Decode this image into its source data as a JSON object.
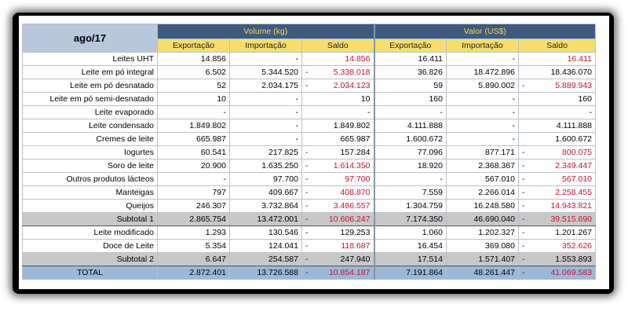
{
  "title": "ago/17",
  "groups": [
    "Volume (kg)",
    "Valor (US$)"
  ],
  "columns": [
    "Exportação",
    "Importação",
    "Saldo",
    "Exportação",
    "Importação",
    "Saldo"
  ],
  "rows": [
    {
      "label": "Leites UHT",
      "kind": "row",
      "v": [
        [
          "14.856",
          ""
        ],
        [
          "-",
          ""
        ],
        [
          "14.856",
          "r"
        ],
        [
          "16.411",
          ""
        ],
        [
          "-",
          ""
        ],
        [
          "16.411",
          "r"
        ]
      ]
    },
    {
      "label": "Leite em pó integral",
      "kind": "row",
      "v": [
        [
          "6.502",
          ""
        ],
        [
          "5.344.520",
          ""
        ],
        [
          "5.338.018",
          "rn"
        ],
        [
          "36.826",
          ""
        ],
        [
          "18.472.896",
          ""
        ],
        [
          "18.436.070",
          ""
        ]
      ]
    },
    {
      "label": "Leite em pó desnatado",
      "kind": "row",
      "v": [
        [
          "52",
          ""
        ],
        [
          "2.034.175",
          ""
        ],
        [
          "2.034.123",
          "rn"
        ],
        [
          "59",
          ""
        ],
        [
          "5.890.002",
          ""
        ],
        [
          "5.889.943",
          "rn"
        ]
      ]
    },
    {
      "label": "Leite em pó semi-desnatado",
      "kind": "row",
      "v": [
        [
          "10",
          ""
        ],
        [
          "-",
          ""
        ],
        [
          "10",
          ""
        ],
        [
          "160",
          ""
        ],
        [
          "-",
          ""
        ],
        [
          "160",
          ""
        ]
      ]
    },
    {
      "label": "Leite evaporado",
      "kind": "row",
      "v": [
        [
          "-",
          ""
        ],
        [
          "-",
          ""
        ],
        [
          "-",
          ""
        ],
        [
          "-",
          ""
        ],
        [
          "-",
          ""
        ],
        [
          "-",
          ""
        ]
      ]
    },
    {
      "label": "Leite condensado",
      "kind": "row",
      "v": [
        [
          "1.849.802",
          ""
        ],
        [
          "-",
          ""
        ],
        [
          "1.849.802",
          ""
        ],
        [
          "4.111.888",
          ""
        ],
        [
          "-",
          ""
        ],
        [
          "4.111.888",
          ""
        ]
      ]
    },
    {
      "label": "Cremes de leite",
      "kind": "row",
      "v": [
        [
          "665.987",
          ""
        ],
        [
          "-",
          ""
        ],
        [
          "665.987",
          ""
        ],
        [
          "1.600.672",
          ""
        ],
        [
          "-",
          ""
        ],
        [
          "1.600.672",
          ""
        ]
      ]
    },
    {
      "label": "Iogurtes",
      "kind": "row",
      "v": [
        [
          "60.541",
          ""
        ],
        [
          "217.825",
          ""
        ],
        [
          "157.284",
          "n"
        ],
        [
          "77.096",
          ""
        ],
        [
          "877.171",
          ""
        ],
        [
          "800.075",
          "rn"
        ]
      ]
    },
    {
      "label": "Soro de leite",
      "kind": "row",
      "v": [
        [
          "20.900",
          ""
        ],
        [
          "1.635.250",
          ""
        ],
        [
          "1.614.350",
          "rn"
        ],
        [
          "18.920",
          ""
        ],
        [
          "2.368.367",
          ""
        ],
        [
          "2.349.447",
          "rn"
        ]
      ]
    },
    {
      "label": "Outros produtos lácteos",
      "kind": "row",
      "v": [
        [
          "-",
          ""
        ],
        [
          "97.700",
          ""
        ],
        [
          "97.700",
          "rn"
        ],
        [
          "-",
          ""
        ],
        [
          "567.010",
          ""
        ],
        [
          "567.010",
          "rn"
        ]
      ]
    },
    {
      "label": "Manteigas",
      "kind": "row",
      "v": [
        [
          "797",
          ""
        ],
        [
          "409.667",
          ""
        ],
        [
          "408.870",
          "rn"
        ],
        [
          "7.559",
          ""
        ],
        [
          "2.266.014",
          ""
        ],
        [
          "2.258.455",
          "rn"
        ]
      ]
    },
    {
      "label": "Queijos",
      "kind": "row",
      "v": [
        [
          "246.307",
          ""
        ],
        [
          "3.732.864",
          ""
        ],
        [
          "3.486.557",
          "rn"
        ],
        [
          "1.304.759",
          ""
        ],
        [
          "16.248.580",
          ""
        ],
        [
          "14.943.821",
          "rn"
        ]
      ]
    },
    {
      "label": "Subtotal 1",
      "kind": "sub",
      "v": [
        [
          "2.865.754",
          ""
        ],
        [
          "13.472.001",
          ""
        ],
        [
          "10.606.247",
          "rn"
        ],
        [
          "7.174.350",
          ""
        ],
        [
          "46.690.040",
          ""
        ],
        [
          "39.515.690",
          "rn"
        ]
      ]
    },
    {
      "label": "Leite modificado",
      "kind": "row",
      "v": [
        [
          "1.293",
          ""
        ],
        [
          "130.546",
          ""
        ],
        [
          "129.253",
          "n"
        ],
        [
          "1.060",
          ""
        ],
        [
          "1.202.327",
          ""
        ],
        [
          "1.201.267",
          "n"
        ]
      ]
    },
    {
      "label": "Doce de Leite",
      "kind": "row",
      "v": [
        [
          "5.354",
          ""
        ],
        [
          "124.041",
          ""
        ],
        [
          "118.687",
          "rn"
        ],
        [
          "16.454",
          ""
        ],
        [
          "369.080",
          ""
        ],
        [
          "352.626",
          "rn"
        ]
      ]
    },
    {
      "label": "Subtotal 2",
      "kind": "sub",
      "v": [
        [
          "6.647",
          ""
        ],
        [
          "254.587",
          ""
        ],
        [
          "247.940",
          "n"
        ],
        [
          "17.514",
          ""
        ],
        [
          "1.571.407",
          ""
        ],
        [
          "1.553.893",
          "n"
        ]
      ]
    },
    {
      "label": "TOTAL",
      "kind": "tot",
      "v": [
        [
          "2.872.401",
          ""
        ],
        [
          "13.726.588",
          ""
        ],
        [
          "10.854.187",
          "rn"
        ],
        [
          "7.191.864",
          ""
        ],
        [
          "48.261.447",
          ""
        ],
        [
          "41.069.583",
          "rn"
        ]
      ]
    }
  ]
}
